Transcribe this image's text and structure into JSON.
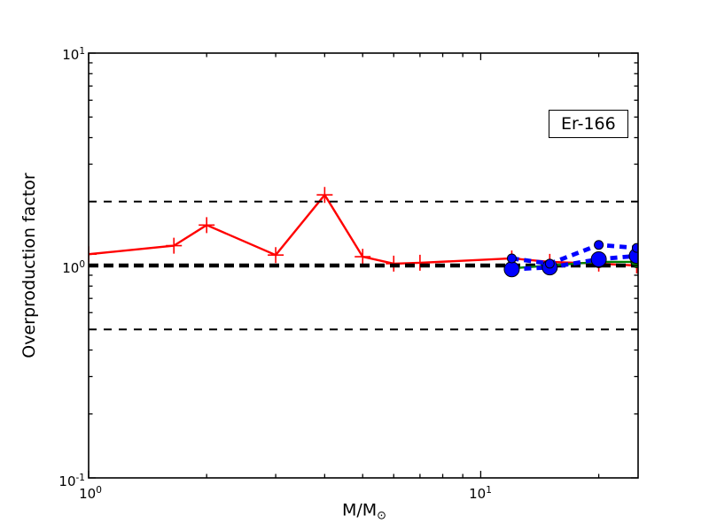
{
  "figure": {
    "annotation": "Er-166",
    "background": "#ffffff"
  },
  "axes": {
    "x": {
      "title": "M/M",
      "title_sub": "⊙",
      "scale": "log",
      "tick_labels": [
        {
          "base": "10",
          "exp": "0"
        },
        {
          "base": "10",
          "exp": "1"
        }
      ]
    },
    "y": {
      "title": "Overproduction factor",
      "scale": "log",
      "tick_labels": [
        {
          "base": "10",
          "exp": "1"
        },
        {
          "base": "10",
          "exp": "0"
        },
        {
          "base": "10",
          "exp": "-1"
        }
      ]
    }
  },
  "chart_data": {
    "type": "line",
    "title": "Er-166",
    "xlabel": "M/M_sun",
    "ylabel": "Overproduction factor",
    "xscale": "log",
    "yscale": "log",
    "xlim": [
      1,
      25.2
    ],
    "ylim": [
      0.1,
      10
    ],
    "grid": false,
    "legend": false,
    "annotation_box": "Er-166",
    "reference_lines": [
      {
        "y": 2.0,
        "color": "#000000",
        "style": "dashed",
        "weight": "thin"
      },
      {
        "y": 1.0,
        "color": "#000000",
        "style": "dashed",
        "weight": "thick"
      },
      {
        "y": 0.5,
        "color": "#000000",
        "style": "dashed",
        "weight": "thin"
      }
    ],
    "series": [
      {
        "name": "low-mass-red-plus",
        "color": "#ff0000",
        "line": "solid",
        "marker": "plus",
        "x": [
          1.0,
          1.65,
          2.0,
          3.0,
          4.0,
          5.0,
          6.0,
          7.0,
          12.0,
          15.0,
          20.0,
          25.0
        ],
        "y": [
          1.13,
          1.24,
          1.55,
          1.12,
          2.15,
          1.1,
          1.02,
          1.03,
          1.08,
          1.04,
          1.02,
          1.0
        ]
      },
      {
        "name": "massive-green-circles",
        "color": "#008000",
        "line": "solid",
        "marker": "circle-mid",
        "x": [
          12.0,
          15.0,
          20.0,
          25.0
        ],
        "y": [
          0.97,
          1.0,
          1.04,
          1.04
        ]
      },
      {
        "name": "massive-blue-large-circles",
        "color": "#0000ff",
        "line": "dashed-thick",
        "marker": "circle-large",
        "x": [
          12.0,
          15.0,
          20.0,
          25.0
        ],
        "y": [
          0.96,
          0.98,
          1.07,
          1.11
        ]
      },
      {
        "name": "massive-blue-small-circles",
        "color": "#0000ff",
        "line": "dashed-thick",
        "marker": "circle-small",
        "x": [
          12.0,
          15.0,
          20.0,
          25.0
        ],
        "y": [
          1.08,
          1.02,
          1.25,
          1.21
        ]
      }
    ]
  }
}
